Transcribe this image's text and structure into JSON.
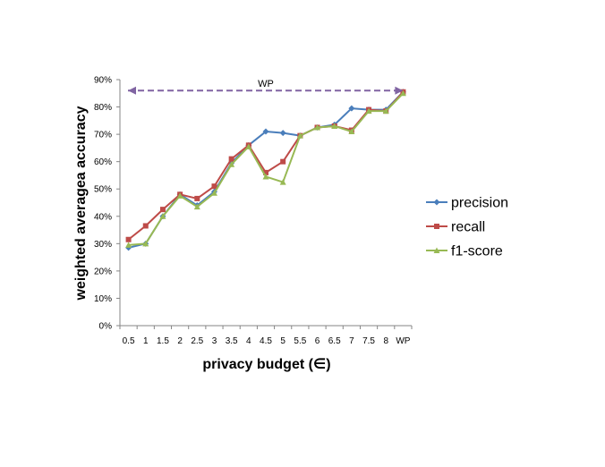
{
  "chart_data": {
    "type": "line",
    "x": [
      "0.5",
      "1",
      "1.5",
      "2",
      "2.5",
      "3",
      "3.5",
      "4",
      "4.5",
      "5",
      "5.5",
      "6",
      "6.5",
      "7",
      "7.5",
      "8",
      "WP"
    ],
    "xlabel": "privacy budget (∈)",
    "ylabel": "weighted averagea accuracy",
    "yticks": [
      "0%",
      "10%",
      "20%",
      "30%",
      "40%",
      "50%",
      "60%",
      "70%",
      "80%",
      "90%"
    ],
    "ylim": [
      0,
      90
    ],
    "grid": false,
    "legend_position": "right",
    "series": [
      {
        "name": "precision",
        "color": "#4a7ebb",
        "marker": "diamond",
        "values": [
          28.5,
          30.0,
          40.0,
          48.0,
          44.0,
          49.0,
          59.5,
          66.0,
          71.0,
          70.5,
          69.5,
          72.5,
          73.5,
          79.5,
          79.0,
          79.0,
          85.5
        ]
      },
      {
        "name": "recall",
        "color": "#be4b48",
        "marker": "square",
        "values": [
          31.5,
          36.5,
          42.5,
          48.0,
          46.5,
          51.0,
          61.0,
          66.0,
          56.0,
          60.0,
          69.5,
          72.5,
          73.0,
          71.5,
          79.0,
          78.5,
          85.5
        ]
      },
      {
        "name": "f1-score",
        "color": "#98b954",
        "marker": "triangle",
        "values": [
          29.5,
          30.0,
          40.0,
          47.5,
          43.5,
          48.5,
          59.0,
          65.5,
          54.5,
          52.5,
          69.5,
          72.5,
          73.0,
          71.0,
          78.5,
          78.5,
          85.0
        ]
      }
    ],
    "annotation": {
      "label": "WP",
      "value": 86.0,
      "color": "#8064a2",
      "style": "dashed-double-arrow"
    }
  }
}
